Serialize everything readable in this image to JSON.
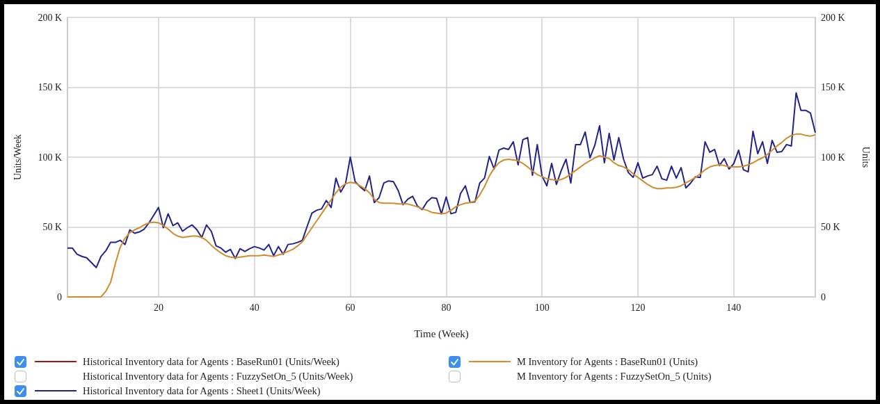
{
  "chart_data": {
    "type": "line",
    "xlabel": "Time (Week)",
    "ylabel": "Units/Week",
    "y2label": "Units",
    "xlim": [
      1,
      157
    ],
    "xticks": [
      20,
      40,
      60,
      80,
      100,
      120,
      140
    ],
    "ylim": [
      0,
      200000
    ],
    "yticks": [
      {
        "value": 0,
        "label": "0"
      },
      {
        "value": 50000,
        "label": "50 K"
      },
      {
        "value": 100000,
        "label": "100 K"
      },
      {
        "value": 150000,
        "label": "150 K"
      },
      {
        "value": 200000,
        "label": "200 K"
      }
    ],
    "y2lim": [
      0,
      200000
    ],
    "y2ticks": [
      {
        "value": 0,
        "label": "0"
      },
      {
        "value": 50000,
        "label": "50 K"
      },
      {
        "value": 100000,
        "label": "100 K"
      },
      {
        "value": 150000,
        "label": "150 K"
      },
      {
        "value": 200000,
        "label": "200 K"
      }
    ],
    "grid": true,
    "legend": "bottom",
    "x": [
      1,
      2,
      3,
      4,
      5,
      6,
      7,
      8,
      9,
      10,
      11,
      12,
      13,
      14,
      15,
      16,
      17,
      18,
      19,
      20,
      21,
      22,
      23,
      24,
      25,
      26,
      27,
      28,
      29,
      30,
      31,
      32,
      33,
      34,
      35,
      36,
      37,
      38,
      39,
      40,
      41,
      42,
      43,
      44,
      45,
      46,
      47,
      48,
      49,
      50,
      51,
      52,
      53,
      54,
      55,
      56,
      57,
      58,
      59,
      60,
      61,
      62,
      63,
      64,
      65,
      66,
      67,
      68,
      69,
      70,
      71,
      72,
      73,
      74,
      75,
      76,
      77,
      78,
      79,
      80,
      81,
      82,
      83,
      84,
      85,
      86,
      87,
      88,
      89,
      90,
      91,
      92,
      93,
      94,
      95,
      96,
      97,
      98,
      99,
      100,
      101,
      102,
      103,
      104,
      105,
      106,
      107,
      108,
      109,
      110,
      111,
      112,
      113,
      114,
      115,
      116,
      117,
      118,
      119,
      120,
      121,
      122,
      123,
      124,
      125,
      126,
      127,
      128,
      129,
      130,
      131,
      132,
      133,
      134,
      135,
      136,
      137,
      138,
      139,
      140,
      141,
      142,
      143,
      144,
      145,
      146,
      147,
      148,
      149,
      150,
      151,
      152,
      153,
      154,
      155,
      156,
      157
    ],
    "series": [
      {
        "name": "Historical Inventory data for Agents : BaseRun01 (Units/Week)",
        "color": "#a01414",
        "values": [
          null,
          null,
          null,
          null,
          null,
          null,
          null,
          null,
          null,
          null,
          null,
          null,
          null,
          null,
          null,
          null,
          null,
          null,
          null,
          null,
          null,
          null,
          null,
          null,
          null,
          null,
          null,
          null,
          null,
          null,
          null,
          null,
          null,
          null,
          null,
          null,
          null,
          null,
          null,
          null,
          null,
          null,
          null,
          null,
          null,
          null,
          null,
          null,
          null,
          null,
          null,
          null,
          null,
          null,
          null,
          null,
          null,
          null,
          null,
          null,
          null,
          null,
          null,
          null,
          null,
          null,
          null,
          null,
          null,
          null,
          null,
          null,
          null,
          null,
          null,
          null,
          null,
          null,
          null,
          null,
          null,
          null,
          null,
          null,
          null,
          null,
          null,
          null,
          null,
          null,
          null,
          null,
          null,
          null,
          null,
          null,
          null,
          null,
          null,
          null,
          null,
          null,
          null,
          null,
          null,
          null,
          null,
          null,
          null,
          null,
          null,
          null,
          null,
          null,
          null,
          null,
          null,
          null,
          null,
          null,
          null,
          null,
          null,
          null,
          null,
          null,
          null,
          null,
          null,
          null,
          null,
          null,
          null,
          null,
          null,
          null,
          null,
          null,
          null,
          null,
          null,
          null,
          null,
          null,
          null,
          null,
          null,
          null,
          null,
          null,
          null,
          null,
          null,
          null,
          null,
          null,
          null
        ]
      },
      {
        "name": "Historical Inventory data for Agents : FuzzySetOn_5 (Units/Week)",
        "values": [
          null,
          null,
          null,
          null,
          null,
          null,
          null,
          null,
          null,
          null,
          null,
          null,
          null,
          null,
          null,
          null,
          null,
          null,
          null,
          null,
          null,
          null,
          null,
          null,
          null,
          null,
          null,
          null,
          null,
          null,
          null,
          null,
          null,
          null,
          null,
          null,
          null,
          null,
          null,
          null,
          null,
          null,
          null,
          null,
          null,
          null,
          null,
          null,
          null,
          null,
          null,
          null,
          null,
          null,
          null,
          null,
          null,
          null,
          null,
          null,
          null,
          null,
          null,
          null,
          null,
          null,
          null,
          null,
          null,
          null,
          null,
          null,
          null,
          null,
          null,
          null,
          null,
          null,
          null,
          null,
          null,
          null,
          null,
          null,
          null,
          null,
          null,
          null,
          null,
          null,
          null,
          null,
          null,
          null,
          null,
          null,
          null,
          null,
          null,
          null,
          null,
          null,
          null,
          null,
          null,
          null,
          null,
          null,
          null,
          null,
          null,
          null,
          null,
          null,
          null,
          null,
          null,
          null,
          null,
          null,
          null,
          null,
          null,
          null,
          null,
          null,
          null,
          null,
          null,
          null,
          null,
          null,
          null,
          null,
          null,
          null,
          null,
          null,
          null,
          null,
          null,
          null,
          null,
          null,
          null,
          null,
          null,
          null,
          null,
          null,
          null,
          null,
          null,
          null,
          null,
          null,
          null
        ]
      },
      {
        "name": "Historical Inventory data for Agents : Sheet1 (Units/Week)",
        "color": "#22228c",
        "values": [
          35000,
          35000,
          30500,
          29000,
          28000,
          24500,
          21000,
          29000,
          33000,
          39000,
          39000,
          40500,
          37500,
          48000,
          45500,
          46500,
          48500,
          53000,
          58500,
          64000,
          49500,
          59500,
          51000,
          53000,
          47000,
          49500,
          51500,
          48000,
          42500,
          51500,
          47000,
          36500,
          35000,
          32000,
          34000,
          27500,
          34500,
          32500,
          34500,
          36000,
          35000,
          33500,
          37500,
          29500,
          36000,
          30500,
          37500,
          38000,
          39000,
          40500,
          50500,
          60000,
          62000,
          63000,
          69000,
          64000,
          85000,
          75000,
          81000,
          100000,
          82500,
          79000,
          76000,
          86500,
          67500,
          71000,
          81500,
          83000,
          82500,
          76000,
          66000,
          70000,
          72000,
          65000,
          62500,
          68000,
          71000,
          70500,
          59500,
          71500,
          59500,
          60500,
          74000,
          79500,
          67500,
          68000,
          81500,
          85000,
          100500,
          91500,
          105000,
          106500,
          105500,
          111000,
          94500,
          112500,
          114000,
          87000,
          109000,
          86500,
          79500,
          95500,
          80500,
          90500,
          98500,
          81500,
          109000,
          109000,
          118000,
          99500,
          108500,
          122500,
          96000,
          117000,
          98000,
          114000,
          98500,
          89000,
          85500,
          96000,
          85000,
          86500,
          87500,
          93500,
          84500,
          83500,
          93500,
          85000,
          92500,
          78000,
          81500,
          86000,
          85500,
          111000,
          103500,
          105500,
          94000,
          99000,
          91500,
          95500,
          105000,
          91000,
          89500,
          118500,
          102500,
          111000,
          95500,
          112000,
          103500,
          104000,
          109000,
          108000,
          146000,
          133500,
          133500,
          131500,
          117500
        ]
      },
      {
        "name": "M Inventory for Agents : BaseRun01 (Units)",
        "color": "#d08c2c",
        "axis": "y2",
        "values": [
          0,
          0,
          0,
          0,
          0,
          0,
          0,
          0,
          4000,
          10500,
          24000,
          35500,
          42000,
          46000,
          48000,
          49500,
          51500,
          53000,
          53500,
          53000,
          51000,
          48500,
          45500,
          43500,
          42500,
          43000,
          43500,
          43500,
          42500,
          40500,
          37000,
          34000,
          31500,
          29500,
          28500,
          28000,
          28500,
          29000,
          29500,
          29500,
          29500,
          30000,
          29500,
          29000,
          30000,
          31000,
          32500,
          34000,
          36500,
          39500,
          44500,
          49500,
          54500,
          59500,
          64500,
          69500,
          74500,
          78500,
          81000,
          82000,
          81500,
          79500,
          77500,
          74500,
          70000,
          67500,
          67000,
          67000,
          67000,
          66500,
          66500,
          66500,
          65500,
          64500,
          63000,
          62000,
          60500,
          60000,
          59500,
          60000,
          62000,
          64500,
          66000,
          67000,
          67500,
          68500,
          73000,
          79000,
          86500,
          92000,
          96000,
          98000,
          98500,
          98000,
          97500,
          95500,
          93000,
          90000,
          87500,
          86000,
          84500,
          84000,
          83500,
          84000,
          85500,
          88000,
          90500,
          93000,
          95500,
          97500,
          99500,
          101000,
          100000,
          99000,
          96000,
          94000,
          93000,
          91000,
          88000,
          85500,
          83000,
          80500,
          78500,
          77500,
          77500,
          78000,
          78000,
          78500,
          79500,
          81500,
          83500,
          85500,
          88000,
          91000,
          93000,
          94000,
          94500,
          94000,
          93000,
          93000,
          93000,
          93500,
          94500,
          96000,
          98000,
          99500,
          102000,
          105000,
          108000,
          110500,
          113500,
          115500,
          116500,
          116500,
          115500,
          115000,
          116000
        ]
      },
      {
        "name": "M Inventory for Agents : FuzzySetOn_5 (Units)",
        "axis": "y2",
        "values": [
          null,
          null,
          null,
          null,
          null,
          null,
          null,
          null,
          null,
          null,
          null,
          null,
          null,
          null,
          null,
          null,
          null,
          null,
          null,
          null,
          null,
          null,
          null,
          null,
          null,
          null,
          null,
          null,
          null,
          null,
          null,
          null,
          null,
          null,
          null,
          null,
          null,
          null,
          null,
          null,
          null,
          null,
          null,
          null,
          null,
          null,
          null,
          null,
          null,
          null,
          null,
          null,
          null,
          null,
          null,
          null,
          null,
          null,
          null,
          null,
          null,
          null,
          null,
          null,
          null,
          null,
          null,
          null,
          null,
          null,
          null,
          null,
          null,
          null,
          null,
          null,
          null,
          null,
          null,
          null,
          null,
          null,
          null,
          null,
          null,
          null,
          null,
          null,
          null,
          null,
          null,
          null,
          null,
          null,
          null,
          null,
          null,
          null,
          null,
          null,
          null,
          null,
          null,
          null,
          null,
          null,
          null,
          null,
          null,
          null,
          null,
          null,
          null,
          null,
          null,
          null,
          null,
          null,
          null,
          null,
          null,
          null,
          null,
          null,
          null,
          null,
          null,
          null,
          null,
          null,
          null,
          null,
          null,
          null,
          null,
          null,
          null,
          null,
          null,
          null,
          null,
          null,
          null,
          null,
          null,
          null,
          null,
          null,
          null,
          null,
          null,
          null,
          null,
          null,
          null,
          null,
          null
        ]
      }
    ]
  }
}
